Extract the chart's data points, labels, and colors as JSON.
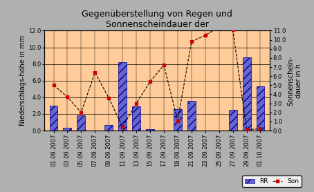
{
  "title": "Gegenüberstellung von Regen und\nSonnenscheindauer der",
  "ylabel_left": "Niederschlags-höhe in mm",
  "ylabel_right": "Sonnenschein-\ndauer in h",
  "dates": [
    "01.09.2007",
    "03.09.2007",
    "05.09.2007",
    "07.09.2007",
    "09.09.2007",
    "11.09.2007",
    "13.09.2007",
    "15.09.2007",
    "17.09.2007",
    "19.09.2007",
    "21.09.2007",
    "23.09.2007",
    "25.09.2007",
    "27.09.2007",
    "29.09.2007",
    "01.10.2007"
  ],
  "RR": [
    3.0,
    0.3,
    1.8,
    0.0,
    0.7,
    8.2,
    2.9,
    0.2,
    0.0,
    2.6,
    3.6,
    0.0,
    0.0,
    2.5,
    8.8,
    5.3
  ],
  "Son": [
    5.0,
    3.7,
    2.0,
    6.4,
    3.6,
    0.4,
    3.0,
    5.4,
    7.2,
    1.1,
    9.8,
    10.5,
    11.4,
    11.1,
    0.1,
    0.2
  ],
  "bar_color": "#6666cc",
  "bar_edgecolor": "#000099",
  "line_color": "#000000",
  "marker_color": "#cc0000",
  "background_color": "#ffcc99",
  "fig_background": "#b0b0b0",
  "ylim_left": [
    0.0,
    12.0
  ],
  "ylim_right": [
    0.0,
    11.0
  ],
  "yticks_left": [
    0.0,
    2.0,
    4.0,
    6.0,
    8.0,
    10.0,
    12.0
  ],
  "yticks_right": [
    0.0,
    1.0,
    2.0,
    3.0,
    4.0,
    5.0,
    6.0,
    7.0,
    8.0,
    9.0,
    10.0,
    11.0
  ],
  "title_fontsize": 9,
  "axis_fontsize": 7,
  "tick_fontsize": 6
}
